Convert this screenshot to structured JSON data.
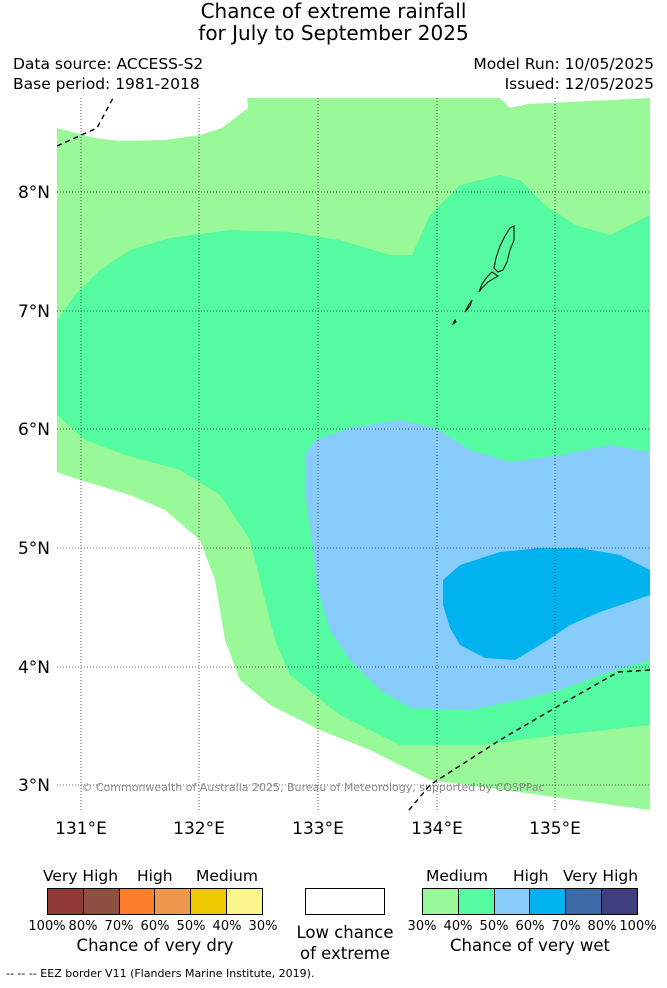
{
  "title_line1": "Chance of extreme rainfall",
  "title_line2": "for July to September 2025",
  "data_source": "Data source: ACCESS-S2",
  "base_period": "Base period: 1981-2018",
  "model_run": "Model Run: 10/05/2025",
  "issued": "Issued: 12/05/2025",
  "map": {
    "lat_labels": [
      "8°N",
      "7°N",
      "6°N",
      "5°N",
      "4°N",
      "3°N"
    ],
    "lon_labels": [
      "131°E",
      "132°E",
      "133°E",
      "134°E",
      "135°E"
    ],
    "copyright": "© Commonwealth of Australia 2025, Bureau of Meteorology, supported by COSPPac",
    "colors": {
      "medium_wet": "#99f998",
      "high_wet_40_50": "#55fba0",
      "high_wet_50_60": "#87ccfa",
      "very_high_wet_60_70": "#00b2ee"
    }
  },
  "legend_dry": {
    "headers": [
      "Very High",
      "High",
      "Medium"
    ],
    "ticks": [
      "100%",
      "80%",
      "70%",
      "60%",
      "50%",
      "40%",
      "30%"
    ],
    "caption": "Chance of very dry",
    "colors": [
      "#8f3a35",
      "#8b5040",
      "#fd7e2a",
      "#ec974b",
      "#f0c800",
      "#fdf58e"
    ]
  },
  "legend_low": {
    "caption_line1": "Low chance",
    "caption_line2": "of extreme"
  },
  "legend_wet": {
    "headers": [
      "Medium",
      "High",
      "Very High"
    ],
    "ticks": [
      "30%",
      "40%",
      "50%",
      "60%",
      "70%",
      "80%",
      "100%"
    ],
    "caption": "Chance of very wet",
    "colors": [
      "#99f998",
      "#55fba0",
      "#87ccfa",
      "#00b2ee",
      "#3b6aa6",
      "#3f3f7f"
    ]
  },
  "footnote": "--  --  -- EEZ border V11 (Flanders Marine Institute, 2019)."
}
